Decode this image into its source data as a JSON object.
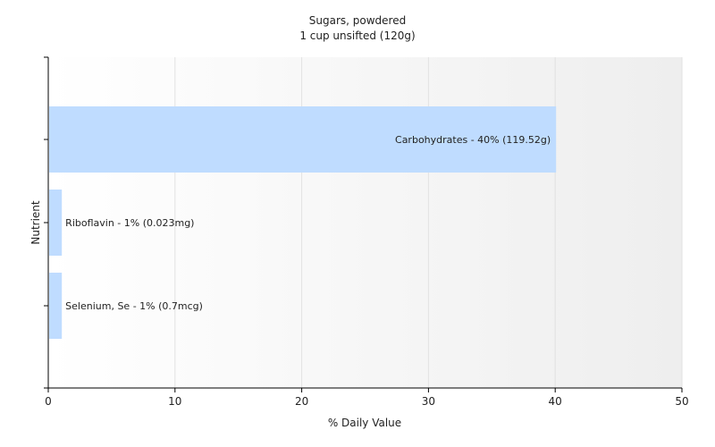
{
  "chart_data": {
    "type": "bar",
    "orientation": "horizontal",
    "title": "Sugars, powdered",
    "subtitle": "1 cup unsifted (120g)",
    "xlabel": "% Daily Value",
    "ylabel": "Nutrient",
    "xlim": [
      0,
      50
    ],
    "xticks": [
      "0",
      "10",
      "20",
      "30",
      "40",
      "50"
    ],
    "grid": true,
    "bar_color": "#bfdcff",
    "background_gradient": [
      "#ffffff",
      "#eeeeee"
    ],
    "categories": [
      "Carbohydrates",
      "Riboflavin",
      "Selenium, Se"
    ],
    "values": [
      40,
      1,
      1
    ],
    "data_labels": [
      "Carbohydrates - 40% (119.52g)",
      "Riboflavin - 1% (0.023mg)",
      "Selenium, Se - 1% (0.7mcg)"
    ]
  }
}
